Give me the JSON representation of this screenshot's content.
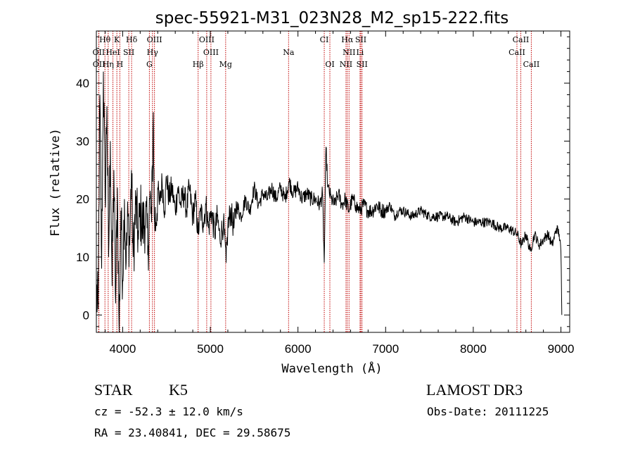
{
  "chart_data": {
    "type": "line",
    "title": "spec-55921-M31_023N28_M2_sp15-222.fits",
    "xlabel": "Wavelength (Å)",
    "ylabel": "Flux (relative)",
    "xlim": [
      3700,
      9100
    ],
    "ylim": [
      -3,
      49
    ],
    "xticks": [
      4000,
      5000,
      6000,
      7000,
      8000,
      9000
    ],
    "yticks": [
      0,
      10,
      20,
      30,
      40
    ],
    "line_color": "#000000",
    "marker_color": "#c00000",
    "spectrum_points": [
      [
        3700,
        4
      ],
      [
        3720,
        1
      ],
      [
        3740,
        38
      ],
      [
        3760,
        8
      ],
      [
        3780,
        42
      ],
      [
        3800,
        20
      ],
      [
        3820,
        36
      ],
      [
        3840,
        10
      ],
      [
        3860,
        30
      ],
      [
        3880,
        5
      ],
      [
        3900,
        25
      ],
      [
        3920,
        2
      ],
      [
        3940,
        22
      ],
      [
        3960,
        -3
      ],
      [
        3980,
        18
      ],
      [
        4000,
        6
      ],
      [
        4020,
        20
      ],
      [
        4040,
        9
      ],
      [
        4060,
        17
      ],
      [
        4080,
        12
      ],
      [
        4100,
        25
      ],
      [
        4120,
        10
      ],
      [
        4150,
        19
      ],
      [
        4180,
        13
      ],
      [
        4200,
        18
      ],
      [
        4230,
        15
      ],
      [
        4260,
        17
      ],
      [
        4290,
        12
      ],
      [
        4310,
        20
      ],
      [
        4330,
        16
      ],
      [
        4350,
        35
      ],
      [
        4360,
        17
      ],
      [
        4380,
        16
      ],
      [
        4400,
        22
      ],
      [
        4420,
        19
      ],
      [
        4450,
        23
      ],
      [
        4480,
        18
      ],
      [
        4500,
        24
      ],
      [
        4530,
        20
      ],
      [
        4560,
        22
      ],
      [
        4600,
        18
      ],
      [
        4630,
        22
      ],
      [
        4660,
        19
      ],
      [
        4700,
        21
      ],
      [
        4730,
        18
      ],
      [
        4760,
        22
      ],
      [
        4800,
        17
      ],
      [
        4830,
        20
      ],
      [
        4860,
        14
      ],
      [
        4890,
        18
      ],
      [
        4920,
        16
      ],
      [
        4950,
        19
      ],
      [
        4980,
        15
      ],
      [
        5010,
        18
      ],
      [
        5050,
        14
      ],
      [
        5080,
        17
      ],
      [
        5110,
        13
      ],
      [
        5150,
        16
      ],
      [
        5180,
        9
      ],
      [
        5200,
        15
      ],
      [
        5230,
        18
      ],
      [
        5270,
        15
      ],
      [
        5300,
        19
      ],
      [
        5350,
        17
      ],
      [
        5400,
        20
      ],
      [
        5450,
        18
      ],
      [
        5500,
        22
      ],
      [
        5550,
        19
      ],
      [
        5600,
        21
      ],
      [
        5650,
        20
      ],
      [
        5700,
        22
      ],
      [
        5750,
        20
      ],
      [
        5800,
        22
      ],
      [
        5850,
        20
      ],
      [
        5900,
        23
      ],
      [
        5950,
        21
      ],
      [
        6000,
        22
      ],
      [
        6050,
        20
      ],
      [
        6100,
        21
      ],
      [
        6150,
        20
      ],
      [
        6200,
        20
      ],
      [
        6250,
        19
      ],
      [
        6280,
        21
      ],
      [
        6300,
        9
      ],
      [
        6310,
        20
      ],
      [
        6320,
        29
      ],
      [
        6340,
        22
      ],
      [
        6380,
        20
      ],
      [
        6420,
        19
      ],
      [
        6460,
        21
      ],
      [
        6500,
        19
      ],
      [
        6540,
        20
      ],
      [
        6580,
        18
      ],
      [
        6620,
        20
      ],
      [
        6660,
        19
      ],
      [
        6700,
        18
      ],
      [
        6750,
        19
      ],
      [
        6800,
        18
      ],
      [
        6850,
        18
      ],
      [
        6900,
        19
      ],
      [
        6950,
        18
      ],
      [
        7000,
        18
      ],
      [
        7050,
        19
      ],
      [
        7100,
        17
      ],
      [
        7150,
        18
      ],
      [
        7200,
        18
      ],
      [
        7300,
        17
      ],
      [
        7400,
        18
      ],
      [
        7500,
        17
      ],
      [
        7600,
        17
      ],
      [
        7700,
        17
      ],
      [
        7800,
        16
      ],
      [
        7900,
        17
      ],
      [
        8000,
        16
      ],
      [
        8100,
        16
      ],
      [
        8200,
        16
      ],
      [
        8300,
        15
      ],
      [
        8400,
        15
      ],
      [
        8500,
        14
      ],
      [
        8550,
        12
      ],
      [
        8600,
        14
      ],
      [
        8650,
        11
      ],
      [
        8700,
        14
      ],
      [
        8750,
        12
      ],
      [
        8800,
        13
      ],
      [
        8850,
        14
      ],
      [
        8900,
        12
      ],
      [
        8950,
        15
      ],
      [
        8980,
        14
      ],
      [
        9000,
        11
      ],
      [
        9010,
        0
      ]
    ],
    "line_markers": [
      {
        "label": "Hθ",
        "wavelength": 3798,
        "row": 0
      },
      {
        "label": "K",
        "wavelength": 3934,
        "row": 0
      },
      {
        "label": "Hδ",
        "wavelength": 4102,
        "row": 0
      },
      {
        "label": "OIII",
        "wavelength": 4363,
        "row": 0
      },
      {
        "label": "OIII",
        "wavelength": 4959,
        "row": 0
      },
      {
        "label": "CI",
        "wavelength": 6300,
        "row": 0
      },
      {
        "label": "Hα",
        "wavelength": 6563,
        "row": 0
      },
      {
        "label": "SII",
        "wavelength": 6717,
        "row": 0
      },
      {
        "label": "CaII",
        "wavelength": 8542,
        "row": 0
      },
      {
        "label": "OII",
        "wavelength": 3727,
        "row": 1
      },
      {
        "label": "HeI",
        "wavelength": 3889,
        "row": 1
      },
      {
        "label": "SII",
        "wavelength": 4070,
        "row": 1
      },
      {
        "label": "Hγ",
        "wavelength": 4340,
        "row": 1
      },
      {
        "label": "OIII",
        "wavelength": 5007,
        "row": 1
      },
      {
        "label": "Na",
        "wavelength": 5893,
        "row": 1
      },
      {
        "label": "NII",
        "wavelength": 6583,
        "row": 1
      },
      {
        "label": "Li",
        "wavelength": 6708,
        "row": 1
      },
      {
        "label": "CaII",
        "wavelength": 8498,
        "row": 1
      },
      {
        "label": "OII",
        "wavelength": 3729,
        "row": 2
      },
      {
        "label": "Hη",
        "wavelength": 3835,
        "row": 2
      },
      {
        "label": "H",
        "wavelength": 3968,
        "row": 2
      },
      {
        "label": "G",
        "wavelength": 4305,
        "row": 2
      },
      {
        "label": "Hβ",
        "wavelength": 4861,
        "row": 2
      },
      {
        "label": "Mg",
        "wavelength": 5175,
        "row": 2
      },
      {
        "label": "OI",
        "wavelength": 6364,
        "row": 2
      },
      {
        "label": "NII",
        "wavelength": 6548,
        "row": 2
      },
      {
        "label": "SII",
        "wavelength": 6731,
        "row": 2
      },
      {
        "label": "CaII",
        "wavelength": 8662,
        "row": 2
      }
    ]
  },
  "info": {
    "object_class": "STAR",
    "subclass": "K5",
    "survey": "LAMOST DR3",
    "redshift_text": "cz = -52.3 ± 12.0 km/s",
    "obs_date_text": "Obs-Date: 20111225",
    "coords_text": "RA =  23.40841, DEC =  29.58675"
  }
}
